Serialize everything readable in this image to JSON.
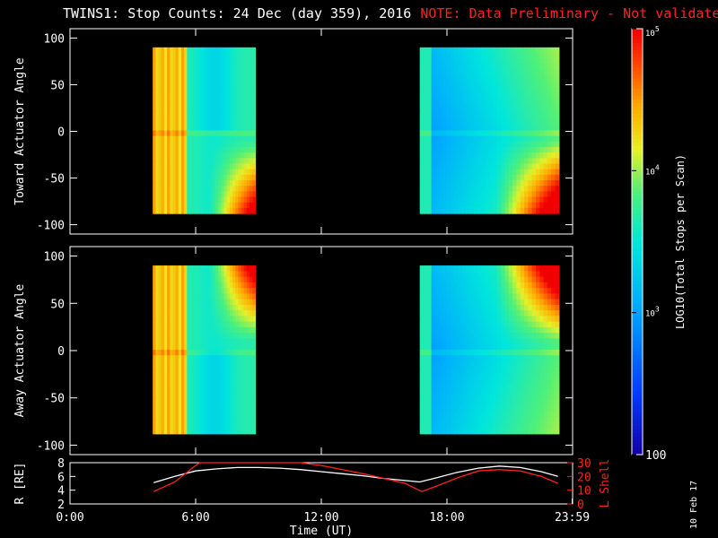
{
  "header": {
    "title": "TWINS1: Stop Counts: 24 Dec (day 359), 2016",
    "note": "NOTE: Data Preliminary - Not validated"
  },
  "datestamp": "10 Feb 17",
  "colors": {
    "note": "#ff2020",
    "line_r": "#ffffff",
    "line_lshell": "#ff2020",
    "background": "#000000"
  },
  "chart_data": [
    {
      "type": "heatmap",
      "ylabel": "Toward Actuator Angle",
      "ylim": [
        -110,
        110
      ],
      "yticks": [
        "-100",
        "-50",
        "0",
        "50",
        "100"
      ],
      "x_range_hours": [
        0,
        24
      ],
      "data_blocks_hours": [
        [
          3.95,
          8.85
        ],
        [
          16.7,
          23.35
        ]
      ],
      "angle_range": [
        -88,
        90
      ],
      "log_counts_range": [
        2,
        5
      ]
    },
    {
      "type": "heatmap",
      "ylabel": "Away Actuator Angle",
      "ylim": [
        -110,
        110
      ],
      "yticks": [
        "-100",
        "-50",
        "0",
        "50",
        "100"
      ],
      "x_range_hours": [
        0,
        24
      ],
      "data_blocks_hours": [
        [
          3.95,
          8.85
        ],
        [
          16.7,
          23.35
        ]
      ],
      "angle_range": [
        -88,
        90
      ],
      "log_counts_range": [
        2,
        5
      ]
    },
    {
      "type": "line",
      "ylabel": "R [RE]",
      "y2label": "L Shell",
      "ylim": [
        2,
        8
      ],
      "yticks": [
        "2",
        "4",
        "6",
        "8"
      ],
      "y2lim": [
        0,
        30
      ],
      "y2ticks": [
        "0",
        "10",
        "20",
        "30"
      ],
      "xlabel": "Time (UT)",
      "xticks": [
        "0:00",
        "6:00",
        "12:00",
        "18:00",
        "23:59"
      ],
      "series": [
        {
          "name": "R",
          "color": "#ffffff",
          "x": [
            4.0,
            5.0,
            6.0,
            7.0,
            8.0,
            9.0,
            10.0,
            11.0,
            12.0,
            13.0,
            14.0,
            15.0,
            16.0,
            16.7,
            17.5,
            18.5,
            19.5,
            20.5,
            21.5,
            22.5,
            23.3
          ],
          "y": [
            5.1,
            6.0,
            6.8,
            7.1,
            7.3,
            7.3,
            7.2,
            7.0,
            6.7,
            6.4,
            6.1,
            5.7,
            5.4,
            5.2,
            5.8,
            6.6,
            7.2,
            7.5,
            7.3,
            6.7,
            6.0
          ]
        },
        {
          "name": "L Shell",
          "color": "#ff2020",
          "x": [
            4.0,
            5.0,
            6.0,
            6.2,
            11.0,
            12.0,
            14.0,
            16.0,
            16.8,
            17.5,
            18.5,
            19.5,
            20.5,
            21.5,
            22.5,
            23.3
          ],
          "y": [
            9,
            16,
            28,
            30,
            30,
            28,
            22,
            15,
            9,
            13,
            19,
            24,
            25,
            24,
            20,
            15
          ]
        }
      ]
    },
    {
      "type": "heatmap",
      "name": "colorbar",
      "ylabel": "LOG10(Total Stops per Scan)",
      "ylim": [
        100,
        100000
      ],
      "yticks": [
        "100",
        "10^3",
        "10^4",
        "10^5"
      ]
    }
  ]
}
